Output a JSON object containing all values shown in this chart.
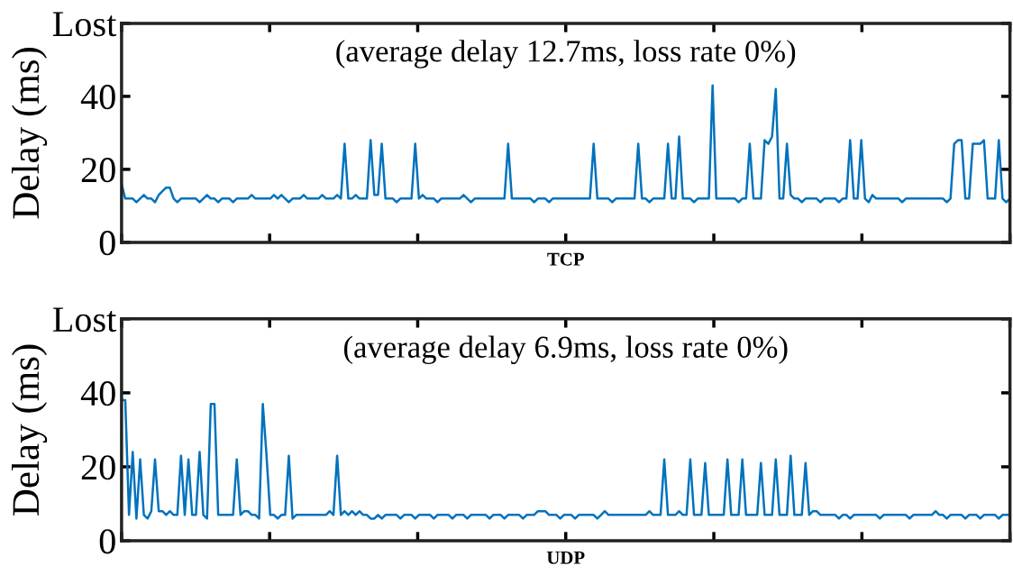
{
  "chart_data": [
    {
      "type": "line",
      "xlabel": "TCP",
      "ylabel": "Delay (ms)",
      "annotations": [
        "(average delay 12.7ms, loss rate 0%)"
      ],
      "ylim": [
        0,
        60
      ],
      "yticks": [
        0,
        20,
        40,
        {
          "value": 60,
          "label": "Lost"
        }
      ],
      "tick_labels": "y",
      "grid": false,
      "marker": "none",
      "line_style": "solid",
      "categories": [
        null,
        null,
        null,
        null,
        null,
        null,
        null,
        null,
        null,
        null,
        null,
        null,
        null,
        null,
        null,
        null,
        null,
        null,
        null,
        null,
        null,
        null,
        null,
        null,
        null,
        null,
        null,
        null,
        null,
        null,
        null,
        null,
        null,
        null,
        null,
        null,
        null,
        null,
        null,
        null,
        null,
        null,
        null,
        null,
        null,
        null,
        null,
        null,
        null,
        null,
        null,
        null,
        null,
        null,
        null,
        null,
        null,
        null,
        null,
        null,
        null,
        null,
        null,
        null,
        null,
        null,
        null,
        null,
        null,
        null,
        null,
        null,
        null,
        null,
        null,
        null,
        null,
        null,
        null,
        null,
        null,
        null,
        null,
        null,
        null,
        null,
        null,
        null,
        null,
        null,
        null,
        null,
        null,
        null,
        null,
        null,
        null,
        null,
        null,
        null,
        null,
        null,
        null,
        null,
        null,
        null,
        null,
        null,
        null,
        null,
        null,
        null,
        null,
        null,
        null,
        null,
        null,
        null,
        null,
        null,
        null,
        null,
        null,
        null,
        null,
        null,
        null,
        null,
        null,
        null,
        null,
        null,
        null,
        null,
        null,
        null,
        null,
        null,
        null,
        null,
        null,
        null,
        null,
        null,
        null,
        null,
        null,
        null,
        null,
        null,
        null,
        null,
        null,
        null,
        null,
        null,
        null,
        null,
        null,
        null,
        null,
        null,
        null,
        null,
        null,
        null,
        null,
        null,
        null,
        null,
        null,
        null,
        null,
        null,
        null,
        null,
        null,
        null,
        null,
        null,
        null,
        null,
        null,
        null,
        null,
        null,
        null,
        null,
        null,
        null,
        null,
        null,
        null,
        null,
        null,
        null,
        null,
        null,
        null,
        null,
        null,
        null,
        null,
        null,
        null,
        null,
        null,
        null,
        null,
        null,
        null,
        null,
        null,
        null,
        null,
        null,
        null,
        null,
        null,
        null,
        null,
        null,
        null,
        null,
        null,
        null,
        null,
        null,
        null,
        null,
        null,
        null,
        null,
        null,
        null,
        null,
        null,
        null,
        null,
        null
      ],
      "series": [
        {
          "color": "#0072bd",
          "values": [
            16,
            12,
            12,
            12,
            11,
            12,
            13,
            12,
            12,
            11,
            13,
            14,
            15,
            15,
            12,
            11,
            12,
            12,
            12,
            12,
            12,
            11,
            12,
            13,
            12,
            12,
            11,
            12,
            12,
            12,
            11,
            12,
            12,
            12,
            12,
            13,
            12,
            12,
            12,
            12,
            12,
            13,
            12,
            13,
            12,
            11,
            12,
            12,
            12,
            13,
            12,
            12,
            12,
            12,
            13,
            12,
            12,
            12,
            13,
            12,
            27,
            12,
            12,
            13,
            12,
            12,
            12,
            28,
            13,
            13,
            27,
            12,
            12,
            12,
            11,
            12,
            12,
            12,
            12,
            27,
            12,
            13,
            12,
            12,
            12,
            11,
            12,
            12,
            12,
            12,
            12,
            12,
            13,
            12,
            11,
            12,
            12,
            12,
            12,
            12,
            12,
            12,
            12,
            12,
            27,
            12,
            12,
            12,
            12,
            12,
            12,
            11,
            12,
            12,
            12,
            11,
            12,
            12,
            12,
            12,
            12,
            12,
            12,
            12,
            12,
            12,
            12,
            27,
            12,
            12,
            12,
            12,
            11,
            12,
            12,
            12,
            12,
            12,
            12,
            27,
            12,
            12,
            11,
            12,
            12,
            12,
            12,
            27,
            12,
            12,
            29,
            12,
            12,
            12,
            11,
            12,
            12,
            12,
            12,
            43,
            12,
            12,
            12,
            12,
            12,
            12,
            11,
            12,
            12,
            27,
            12,
            12,
            12,
            28,
            27,
            29,
            42,
            12,
            12,
            27,
            13,
            12,
            12,
            11,
            12,
            12,
            12,
            12,
            11,
            12,
            12,
            12,
            12,
            11,
            12,
            12,
            28,
            12,
            12,
            28,
            12,
            11,
            13,
            12,
            12,
            12,
            12,
            12,
            12,
            12,
            11,
            12,
            12,
            12,
            12,
            12,
            12,
            12,
            12,
            12,
            12,
            12,
            11,
            12,
            27,
            28,
            28,
            12,
            12,
            27,
            27,
            27,
            28,
            12,
            12,
            12,
            28,
            12,
            11,
            12
          ]
        }
      ]
    },
    {
      "type": "line",
      "xlabel": "UDP",
      "ylabel": "Delay (ms)",
      "annotations": [
        "(average delay 6.9ms, loss rate 0%)"
      ],
      "ylim": [
        0,
        60
      ],
      "yticks": [
        0,
        20,
        40,
        {
          "value": 60,
          "label": "Lost"
        }
      ],
      "tick_labels": "y",
      "grid": false,
      "marker": "none",
      "line_style": "solid",
      "categories": [
        null,
        null,
        null,
        null,
        null,
        null,
        null,
        null,
        null,
        null,
        null,
        null,
        null,
        null,
        null,
        null,
        null,
        null,
        null,
        null,
        null,
        null,
        null,
        null,
        null,
        null,
        null,
        null,
        null,
        null,
        null,
        null,
        null,
        null,
        null,
        null,
        null,
        null,
        null,
        null,
        null,
        null,
        null,
        null,
        null,
        null,
        null,
        null,
        null,
        null,
        null,
        null,
        null,
        null,
        null,
        null,
        null,
        null,
        null,
        null,
        null,
        null,
        null,
        null,
        null,
        null,
        null,
        null,
        null,
        null,
        null,
        null,
        null,
        null,
        null,
        null,
        null,
        null,
        null,
        null,
        null,
        null,
        null,
        null,
        null,
        null,
        null,
        null,
        null,
        null,
        null,
        null,
        null,
        null,
        null,
        null,
        null,
        null,
        null,
        null,
        null,
        null,
        null,
        null,
        null,
        null,
        null,
        null,
        null,
        null,
        null,
        null,
        null,
        null,
        null,
        null,
        null,
        null,
        null,
        null,
        null,
        null,
        null,
        null,
        null,
        null,
        null,
        null,
        null,
        null,
        null,
        null,
        null,
        null,
        null,
        null,
        null,
        null,
        null,
        null,
        null,
        null,
        null,
        null,
        null,
        null,
        null,
        null,
        null,
        null,
        null,
        null,
        null,
        null,
        null,
        null,
        null,
        null,
        null,
        null,
        null,
        null,
        null,
        null,
        null,
        null,
        null,
        null,
        null,
        null,
        null,
        null,
        null,
        null,
        null,
        null,
        null,
        null,
        null,
        null,
        null,
        null,
        null,
        null,
        null,
        null,
        null,
        null,
        null,
        null,
        null,
        null,
        null,
        null,
        null,
        null,
        null,
        null,
        null,
        null,
        null,
        null,
        null,
        null,
        null,
        null,
        null,
        null,
        null,
        null,
        null,
        null,
        null,
        null,
        null,
        null,
        null,
        null,
        null,
        null,
        null,
        null,
        null,
        null,
        null,
        null,
        null,
        null,
        null,
        null,
        null,
        null,
        null,
        null,
        null,
        null,
        null,
        null,
        null,
        null
      ],
      "series": [
        {
          "color": "#0072bd",
          "values": [
            38,
            38,
            7,
            24,
            6,
            22,
            7,
            6,
            8,
            22,
            8,
            8,
            7,
            8,
            7,
            7,
            23,
            7,
            22,
            7,
            7,
            24,
            7,
            6,
            37,
            37,
            7,
            7,
            7,
            7,
            7,
            22,
            7,
            8,
            8,
            7,
            7,
            6,
            37,
            23,
            7,
            7,
            6,
            7,
            7,
            23,
            6,
            7,
            7,
            7,
            7,
            7,
            7,
            7,
            7,
            7,
            8,
            7,
            23,
            7,
            8,
            7,
            8,
            7,
            8,
            7,
            7,
            6,
            6,
            7,
            6,
            7,
            7,
            7,
            7,
            6,
            7,
            7,
            7,
            6,
            7,
            7,
            7,
            7,
            6,
            7,
            7,
            7,
            7,
            6,
            7,
            7,
            7,
            6,
            7,
            7,
            7,
            7,
            7,
            6,
            7,
            7,
            7,
            6,
            7,
            7,
            7,
            7,
            6,
            7,
            7,
            7,
            8,
            8,
            8,
            7,
            7,
            7,
            6,
            7,
            7,
            7,
            6,
            7,
            7,
            7,
            7,
            7,
            6,
            7,
            8,
            7,
            7,
            7,
            7,
            7,
            7,
            7,
            7,
            7,
            7,
            7,
            8,
            7,
            7,
            7,
            22,
            7,
            7,
            7,
            8,
            7,
            7,
            22,
            7,
            7,
            7,
            21,
            7,
            7,
            7,
            7,
            7,
            22,
            7,
            7,
            7,
            22,
            7,
            7,
            7,
            7,
            21,
            7,
            7,
            7,
            22,
            7,
            7,
            7,
            23,
            7,
            7,
            7,
            21,
            7,
            8,
            8,
            7,
            7,
            7,
            7,
            7,
            6,
            7,
            7,
            6,
            7,
            7,
            7,
            7,
            7,
            7,
            7,
            6,
            7,
            7,
            7,
            7,
            7,
            7,
            7,
            6,
            7,
            7,
            7,
            7,
            7,
            7,
            8,
            7,
            7,
            6,
            7,
            7,
            7,
            7,
            6,
            7,
            7,
            7,
            6,
            7,
            7,
            7,
            7,
            6,
            7,
            7,
            7
          ]
        }
      ]
    }
  ]
}
